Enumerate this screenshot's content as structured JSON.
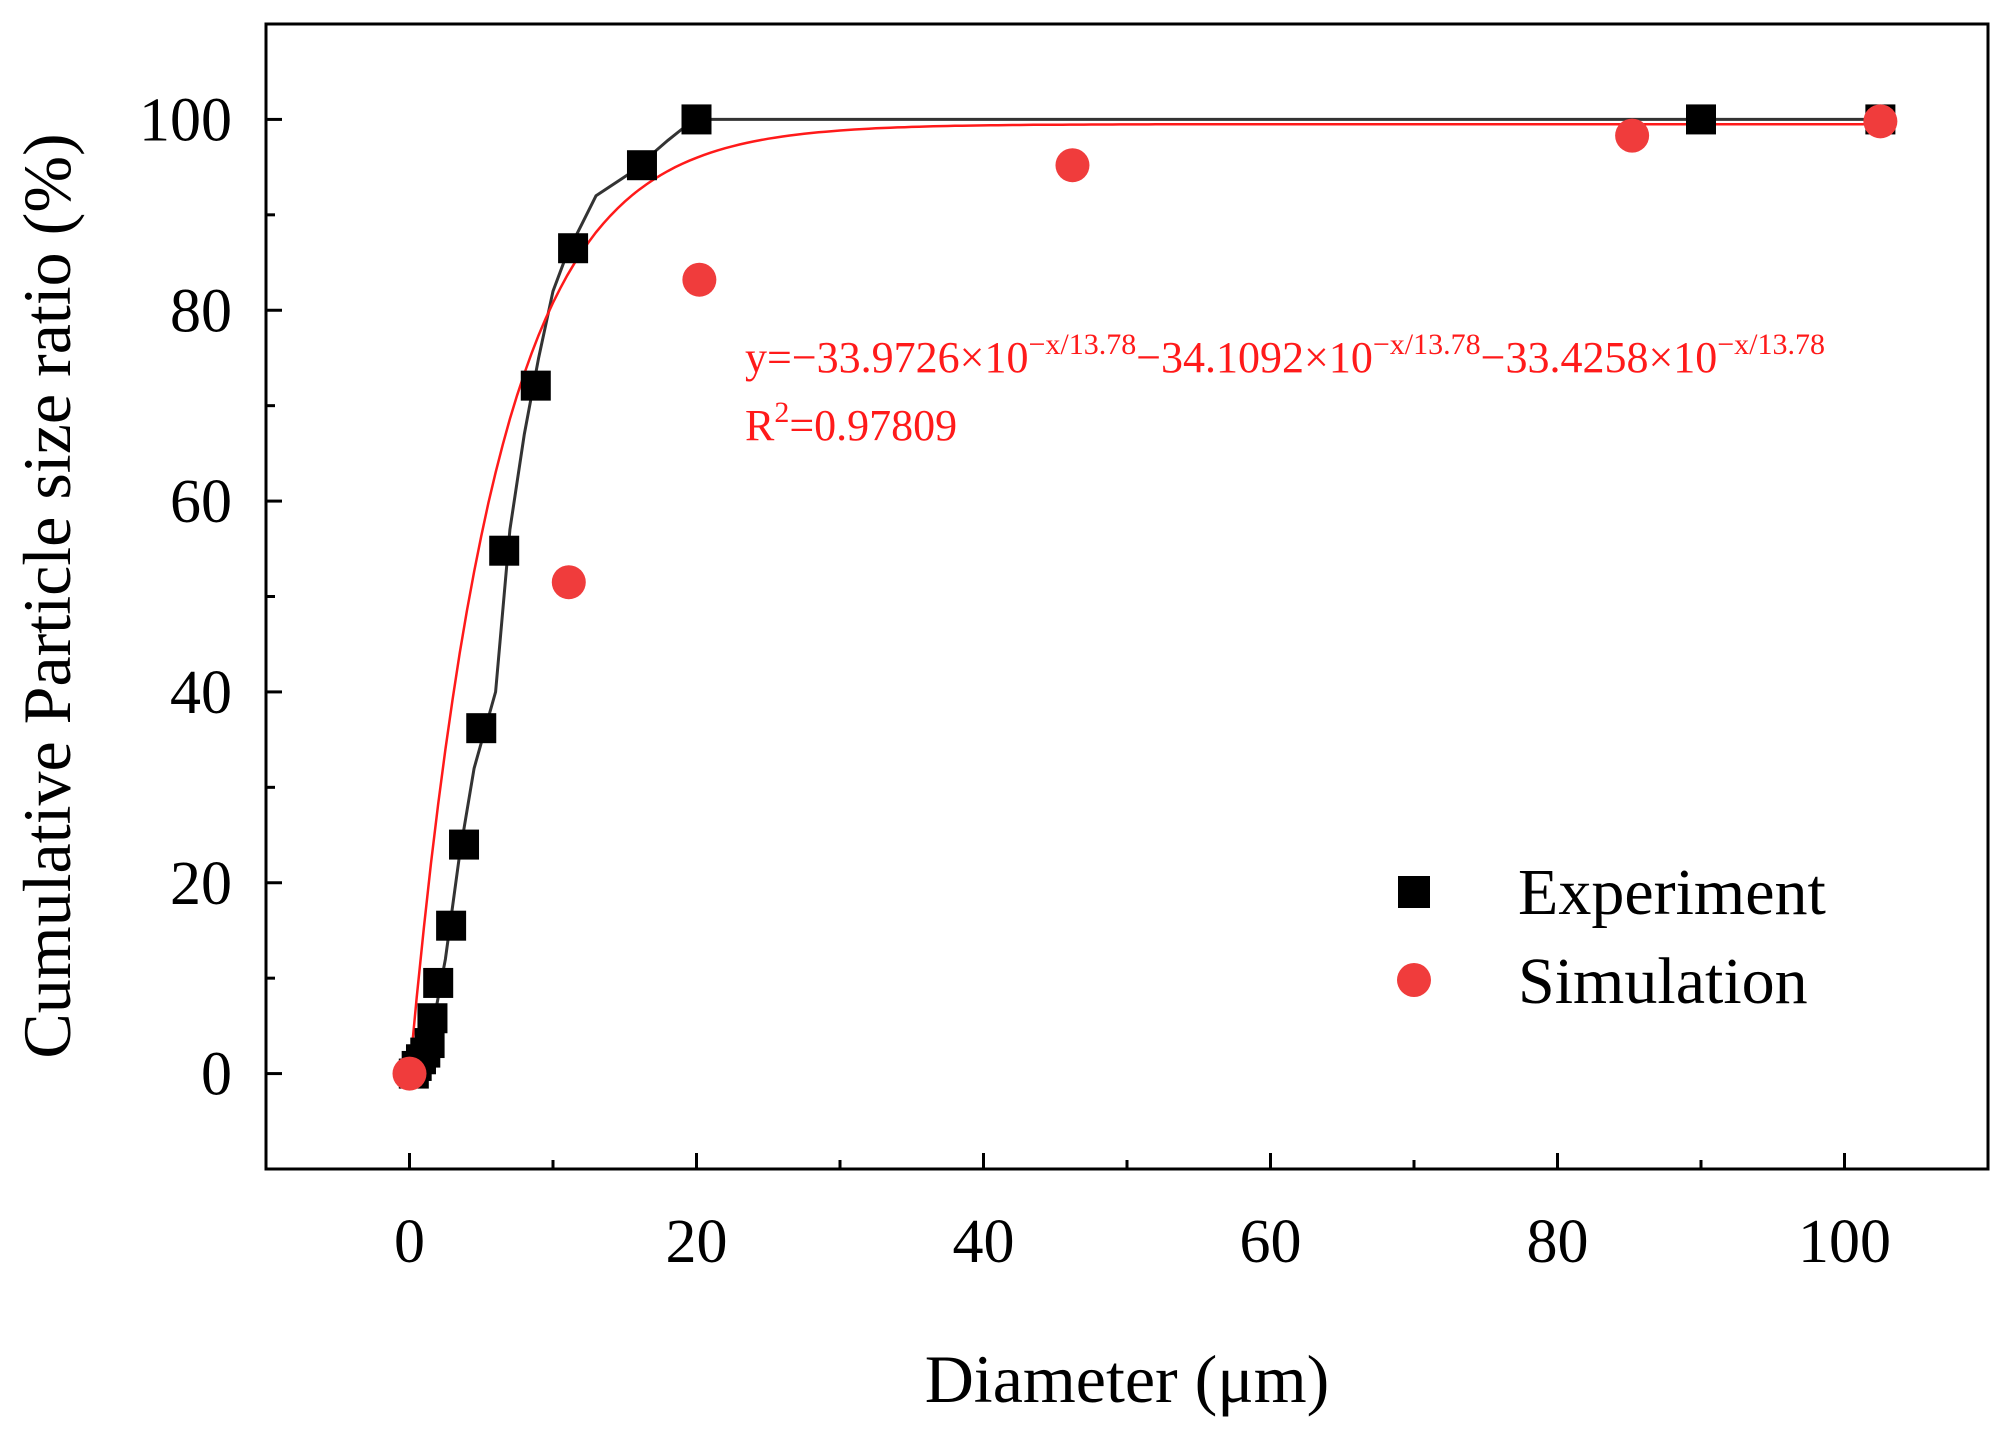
{
  "chart_data": {
    "type": "scatter",
    "xlabel": "Diameter (μm)",
    "ylabel": "Cumulative Particle size ratio (%)",
    "xlim": [
      -10,
      110
    ],
    "ylim": [
      -10,
      110
    ],
    "x_ticks": [
      0,
      20,
      40,
      60,
      80,
      100
    ],
    "y_ticks": [
      0,
      20,
      40,
      60,
      80,
      100
    ],
    "x_tick_labels": [
      "0",
      "20",
      "40",
      "60",
      "80",
      "100"
    ],
    "y_tick_labels": [
      "0",
      "20",
      "40",
      "60",
      "80",
      "100"
    ],
    "grid": false,
    "legend_position": "lower-right",
    "series": [
      {
        "name": "Experiment",
        "marker": "square",
        "color": "#000000",
        "x": [
          0.3,
          0.5,
          0.8,
          1.1,
          1.4,
          1.6,
          2.0,
          2.9,
          3.8,
          5.0,
          6.6,
          8.8,
          11.4,
          16.2,
          20.0,
          90.0,
          102.5
        ],
        "y": [
          0.0,
          0.8,
          1.5,
          2.2,
          3.2,
          5.8,
          9.5,
          15.5,
          24.0,
          36.2,
          54.8,
          72.1,
          86.5,
          95.2,
          100.0,
          100.0,
          100.0
        ],
        "fit_line": {
          "color": "#333333",
          "x": [
            0.3,
            1.5,
            2.5,
            3.5,
            4.5,
            6.0,
            7.0,
            8.0,
            9.0,
            10.0,
            11.0,
            12.0,
            13.0,
            14.0,
            15.0,
            16.0,
            17.0,
            18.0,
            19.0,
            20.0,
            21.0,
            22.0,
            30.0,
            50.0,
            70.0,
            90.0,
            102.5
          ],
          "y": [
            0.0,
            4.0,
            12.0,
            23.0,
            32.0,
            40.0,
            57.0,
            67.0,
            75.0,
            82.0,
            86.0,
            89.0,
            92.0,
            93.0,
            94.0,
            95.0,
            96.5,
            97.8,
            99.0,
            99.6,
            100.0,
            100.0,
            100.0,
            100.0,
            100.0,
            100.0,
            100.0
          ]
        }
      },
      {
        "name": "Simulation",
        "marker": "circle",
        "color": "#F03C3C",
        "x": [
          0.0,
          11.1,
          20.2,
          46.2,
          85.2,
          102.5
        ],
        "y": [
          0.0,
          51.5,
          83.2,
          95.2,
          98.3,
          99.8
        ],
        "fit_line": {
          "color": "#FF1A1A",
          "function": "y = 99.5 * (1 - 10^(-x/13.78))",
          "x_range": [
            0,
            102.5
          ]
        }
      }
    ],
    "annotations": {
      "equation_prefix": "y=−33.9726×10",
      "exp1": "−x/13.78",
      "term2": "−34.1092×10",
      "exp2": "−x/13.78",
      "term3": "−33.4258×10",
      "exp3": "−x/13.78",
      "r2_prefix": "R",
      "r2_sup": "2",
      "r2_value": "=0.97809",
      "color": "#FF1A1A"
    }
  }
}
